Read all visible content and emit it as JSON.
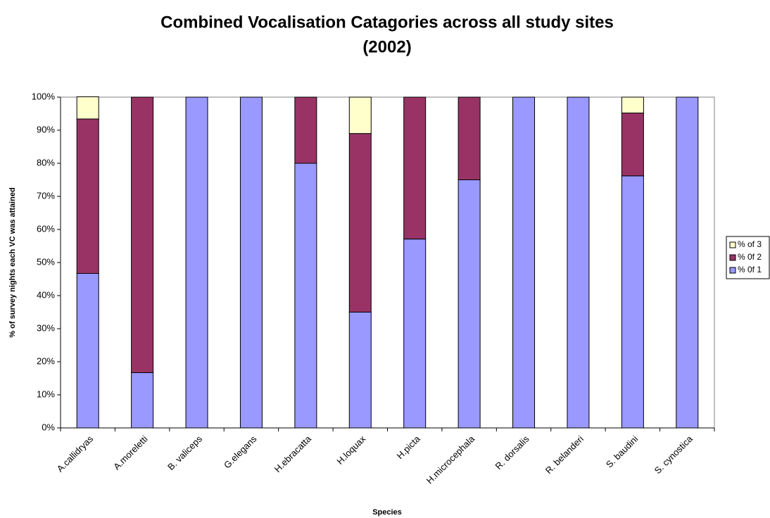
{
  "chart_data": {
    "type": "stacked_bar",
    "title": [
      "Combined Vocalisation Catagories  across all study sites",
      "(2002)"
    ],
    "x_label": "Species",
    "y_label": "% of survey nights each VC was attained",
    "categories": [
      "A.callidryas",
      "A.moreletti",
      "B. valiceps",
      "G.elegans",
      "H.ebracatta",
      "H.loquax",
      "H.picta",
      "H.microcephala",
      "R. dorsalis",
      "R. belanderi",
      "S. baudini",
      "S. cynostica"
    ],
    "series": [
      {
        "name": "% 0f 1",
        "color": "#9999ff",
        "values": [
          46.7,
          16.7,
          100,
          100,
          80,
          35,
          57.1,
          75,
          100,
          100,
          76.2,
          100
        ]
      },
      {
        "name": "% 0f 2",
        "color": "#993366",
        "values": [
          46.7,
          83.3,
          0,
          0,
          20,
          54,
          42.9,
          25,
          0,
          0,
          19.0,
          0
        ]
      },
      {
        "name": "% of 3",
        "color": "#ffffcc",
        "values": [
          6.7,
          0,
          0,
          0,
          0,
          11,
          0,
          0,
          0,
          0,
          4.8,
          0
        ]
      }
    ],
    "ylim": [
      0,
      100
    ],
    "yticks": [
      {
        "value": 0,
        "label": "0%"
      },
      {
        "value": 10,
        "label": "10%"
      },
      {
        "value": 20,
        "label": "20%"
      },
      {
        "value": 30,
        "label": "30%"
      },
      {
        "value": 40,
        "label": "40%"
      },
      {
        "value": 50,
        "label": "50%"
      },
      {
        "value": 60,
        "label": "60%"
      },
      {
        "value": 70,
        "label": "70%"
      },
      {
        "value": 80,
        "label": "80%"
      },
      {
        "value": 90,
        "label": "90%"
      },
      {
        "value": 100,
        "label": "100%"
      }
    ],
    "grid": false,
    "legend": "right"
  }
}
